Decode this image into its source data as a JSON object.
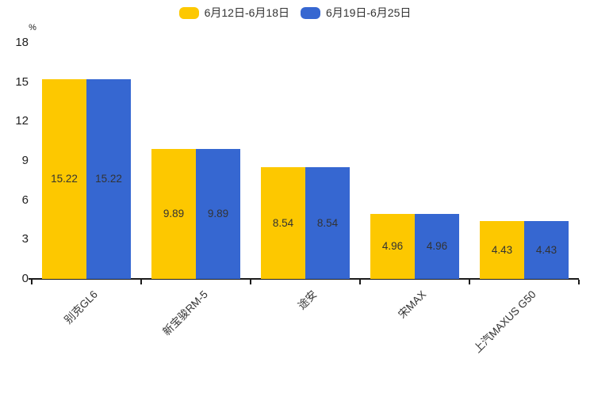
{
  "legend": {
    "items": [
      {
        "label": "6月12日-6月18日",
        "color": "#fdc800"
      },
      {
        "label": "6月19日-6月25日",
        "color": "#3667d1"
      }
    ]
  },
  "y_axis": {
    "unit": "%"
  },
  "colors": {
    "series_week1": "#fdc800",
    "series_week2": "#3667d1",
    "axis_line": "#1a1a1a",
    "tick_text": "#222222",
    "value_label_text": "#333333"
  },
  "chart_data": {
    "type": "bar",
    "title": "",
    "xlabel": "",
    "ylabel": "%",
    "categories": [
      "别克GL6",
      "新宝骏RM-5",
      "途安",
      "宋MAX",
      "上汽MAXUS G50"
    ],
    "series": [
      {
        "name": "6月12日-6月18日",
        "color": "#fdc800",
        "values": [
          15.22,
          9.89,
          8.54,
          4.96,
          4.43
        ]
      },
      {
        "name": "6月19日-6月25日",
        "color": "#3667d1",
        "values": [
          15.22,
          9.89,
          8.54,
          4.96,
          4.43
        ]
      }
    ],
    "ylim": [
      0,
      18
    ],
    "yticks": [
      0,
      3,
      6,
      9,
      12,
      15,
      18
    ],
    "grid": false,
    "legend_position": "top-center",
    "value_labels": "inside-middle",
    "x_label_rotation_deg": 45
  }
}
